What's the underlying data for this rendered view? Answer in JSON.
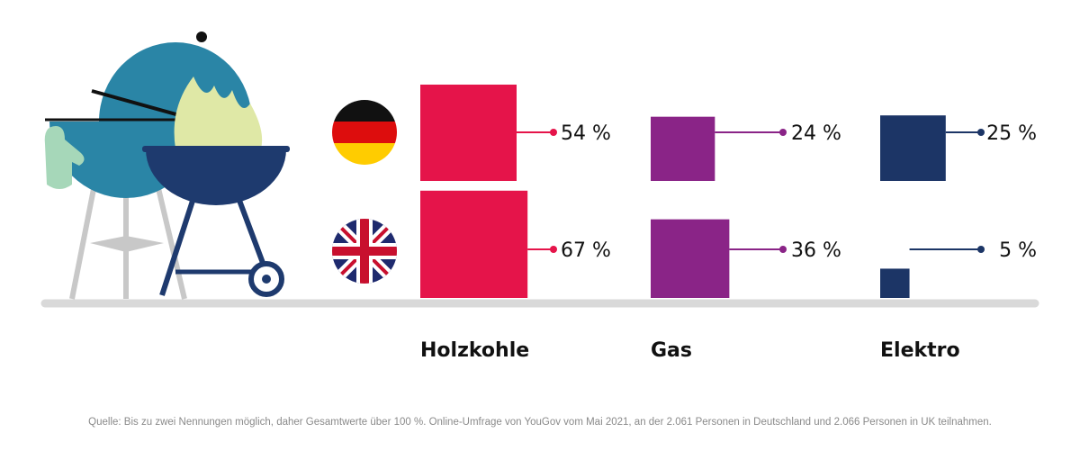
{
  "chart_data": {
    "type": "bar",
    "categories": [
      "Holzkohle",
      "Gas",
      "Elektro"
    ],
    "series": [
      {
        "name": "Deutschland",
        "flag": "germany-flag",
        "values": [
          54,
          24,
          25
        ],
        "labels": [
          "54 %",
          "24 %",
          "25 %"
        ]
      },
      {
        "name": "UK",
        "flag": "uk-flag",
        "values": [
          67,
          36,
          5
        ],
        "labels": [
          "67 %",
          "36 %",
          "5 %"
        ]
      }
    ],
    "colors": [
      "#e5144a",
      "#8a2487",
      "#1c3566"
    ],
    "title": "",
    "xlabel": "",
    "ylabel": "",
    "ylim": [
      0,
      100
    ],
    "grid": false,
    "legend": "left (country flags)"
  },
  "source": "Quelle: Bis zu zwei Nennungen möglich, daher Gesamtwerte über 100 %. Online-Umfrage von YouGov vom Mai 2021, an der 2.061 Personen in Deutschland und 2.066 Personen in UK teilnahmen.",
  "illustration": {
    "icons": [
      "kettle-grill-icon",
      "charcoal-grill-icon",
      "oven-mitt-icon",
      "flame-icon"
    ]
  },
  "colors": {
    "ground": "#d9d9d9",
    "grill_blue": "#2a85a6",
    "grill_navy": "#1e3a6e",
    "flame": "#dfe8a6",
    "mitt": "#a6d7b9"
  }
}
